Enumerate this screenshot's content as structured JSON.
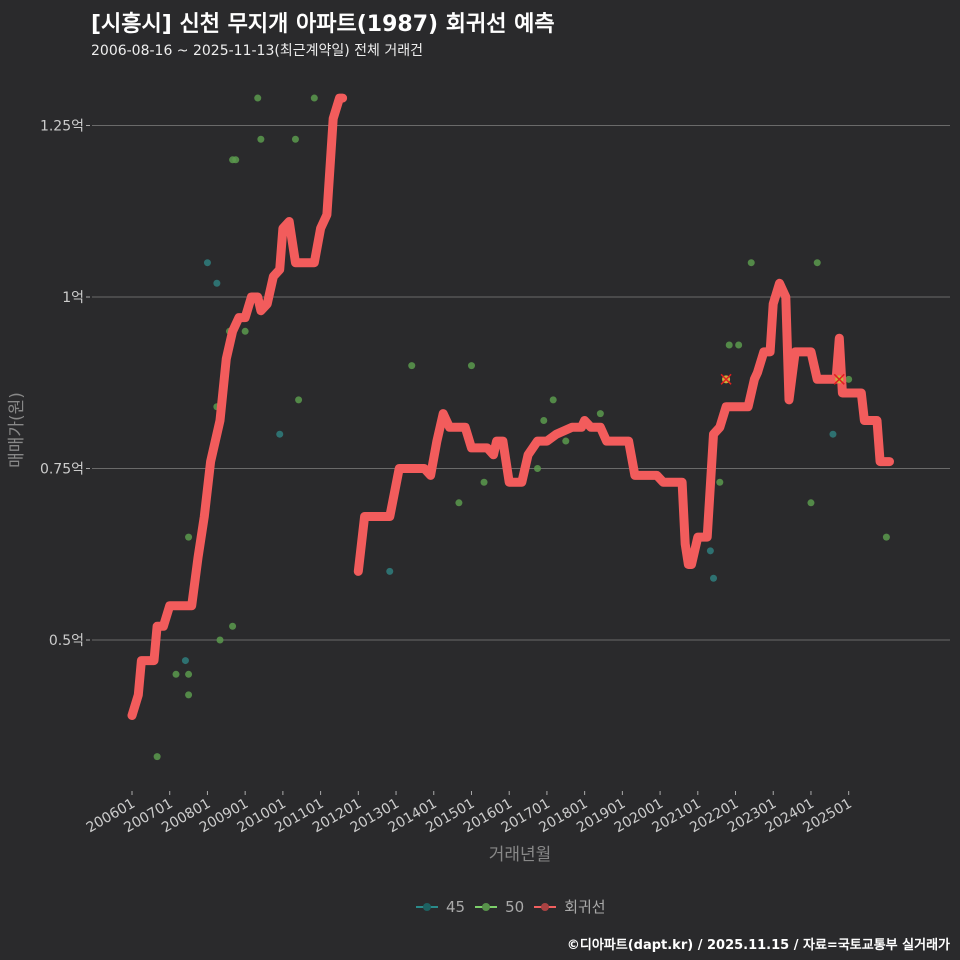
{
  "header": {
    "title": "[시흥시] 신천 무지개 아파트(1987) 회귀선 예측",
    "subtitle": "2006-08-16 ~ 2025-11-13(최근계약일) 전체 거래건"
  },
  "legend": {
    "items": [
      {
        "label": "45",
        "color": "#2a8a8a"
      },
      {
        "label": "50",
        "color": "#7ccf6a"
      },
      {
        "label": "회귀선",
        "color": "#f15f5f"
      }
    ]
  },
  "caption": "©디아파트(dapt.kr) / 2025.11.15 / 자료=국토교통부 실거래가",
  "colors": {
    "background": "#2a2a2c",
    "grid": "#6a6a6a",
    "regression": "#f25c5c",
    "series45": "#2f7e7e",
    "series50": "#5a9a4e"
  },
  "chart_data": {
    "type": "line",
    "title": "[시흥시] 신천 무지개 아파트(1987) 회귀선 예측",
    "subtitle": "2006-08-16 ~ 2025-11-13(최근계약일) 전체 거래건",
    "xlabel": "거래년월",
    "ylabel": "매매가(원)",
    "x_ticks": [
      "200601",
      "200701",
      "200801",
      "200901",
      "201001",
      "201101",
      "201201",
      "201301",
      "201401",
      "201501",
      "201601",
      "201701",
      "201801",
      "201901",
      "202001",
      "202101",
      "202201",
      "202301",
      "202401",
      "202501"
    ],
    "y_ticks": [
      {
        "value": 0.5,
        "label": "0.5억"
      },
      {
        "value": 0.75,
        "label": "0.75억"
      },
      {
        "value": 1.0,
        "label": "1억"
      },
      {
        "value": 1.25,
        "label": "1.25억"
      }
    ],
    "ylim": [
      0.28,
      1.34
    ],
    "grid": true,
    "legend_position": "bottom",
    "series": [
      {
        "name": "회귀선",
        "type": "line",
        "segments": [
          [
            [
              "2006-01",
              0.39
            ],
            [
              "2006-03",
              0.42
            ],
            [
              "2006-04",
              0.47
            ],
            [
              "2006-08",
              0.47
            ],
            [
              "2006-09",
              0.52
            ],
            [
              "2006-11",
              0.52
            ],
            [
              "2007-01",
              0.55
            ],
            [
              "2007-08",
              0.55
            ],
            [
              "2007-10",
              0.62
            ],
            [
              "2007-12",
              0.68
            ],
            [
              "2008-02",
              0.76
            ],
            [
              "2008-05",
              0.82
            ],
            [
              "2008-07",
              0.91
            ],
            [
              "2008-09",
              0.95
            ],
            [
              "2008-11",
              0.97
            ],
            [
              "2009-01",
              0.97
            ],
            [
              "2009-03",
              1.0
            ],
            [
              "2009-05",
              1.0
            ],
            [
              "2009-06",
              0.98
            ],
            [
              "2009-08",
              0.99
            ],
            [
              "2009-10",
              1.03
            ],
            [
              "2009-12",
              1.04
            ],
            [
              "2010-01",
              1.1
            ],
            [
              "2010-03",
              1.11
            ],
            [
              "2010-05",
              1.05
            ],
            [
              "2010-11",
              1.05
            ],
            [
              "2011-01",
              1.1
            ],
            [
              "2011-03",
              1.12
            ],
            [
              "2011-05",
              1.26
            ],
            [
              "2011-07",
              1.29
            ],
            [
              "2011-08",
              1.29
            ]
          ],
          [
            [
              "2012-01",
              0.6
            ],
            [
              "2012-03",
              0.68
            ],
            [
              "2012-11",
              0.68
            ],
            [
              "2013-02",
              0.75
            ],
            [
              "2013-10",
              0.75
            ],
            [
              "2013-12",
              0.74
            ],
            [
              "2014-02",
              0.79
            ],
            [
              "2014-04",
              0.83
            ],
            [
              "2014-06",
              0.81
            ],
            [
              "2014-11",
              0.81
            ],
            [
              "2015-01",
              0.78
            ],
            [
              "2015-06",
              0.78
            ],
            [
              "2015-08",
              0.77
            ],
            [
              "2015-09",
              0.79
            ],
            [
              "2015-11",
              0.79
            ],
            [
              "2016-01",
              0.73
            ],
            [
              "2016-05",
              0.73
            ],
            [
              "2016-07",
              0.77
            ],
            [
              "2016-10",
              0.79
            ],
            [
              "2017-01",
              0.79
            ],
            [
              "2017-04",
              0.8
            ],
            [
              "2017-09",
              0.81
            ],
            [
              "2017-12",
              0.81
            ],
            [
              "2018-01",
              0.82
            ],
            [
              "2018-03",
              0.81
            ],
            [
              "2018-06",
              0.81
            ],
            [
              "2018-08",
              0.79
            ],
            [
              "2019-03",
              0.79
            ],
            [
              "2019-05",
              0.74
            ],
            [
              "2019-12",
              0.74
            ],
            [
              "2020-02",
              0.73
            ],
            [
              "2020-08",
              0.73
            ],
            [
              "2020-09",
              0.64
            ],
            [
              "2020-10",
              0.61
            ],
            [
              "2020-11",
              0.61
            ],
            [
              "2021-01",
              0.65
            ],
            [
              "2021-04",
              0.65
            ],
            [
              "2021-06",
              0.8
            ],
            [
              "2021-08",
              0.81
            ],
            [
              "2021-10",
              0.84
            ],
            [
              "2022-05",
              0.84
            ],
            [
              "2022-07",
              0.88
            ],
            [
              "2022-08",
              0.89
            ],
            [
              "2022-10",
              0.92
            ],
            [
              "2022-12",
              0.92
            ],
            [
              "2023-01",
              0.99
            ],
            [
              "2023-03",
              1.02
            ],
            [
              "2023-05",
              1.0
            ],
            [
              "2023-06",
              0.85
            ],
            [
              "2023-08",
              0.92
            ],
            [
              "2024-01",
              0.92
            ],
            [
              "2024-03",
              0.88
            ],
            [
              "2024-05",
              0.88
            ],
            [
              "2024-06",
              0.88
            ],
            [
              "2024-09",
              0.88
            ],
            [
              "2024-10",
              0.94
            ],
            [
              "2024-11",
              0.86
            ],
            [
              "2025-05",
              0.86
            ],
            [
              "2025-06",
              0.82
            ],
            [
              "2025-10",
              0.82
            ],
            [
              "2025-11",
              0.76
            ],
            [
              "2026-02",
              0.76
            ]
          ]
        ]
      },
      {
        "name": "45",
        "type": "scatter",
        "points": [
          [
            "2007-06",
            0.47
          ],
          [
            "2008-01",
            1.05
          ],
          [
            "2008-04",
            1.02
          ],
          [
            "2009-12",
            0.8
          ],
          [
            "2012-11",
            0.6
          ],
          [
            "2021-05",
            0.63
          ],
          [
            "2021-06",
            0.59
          ],
          [
            "2021-10",
            0.88
          ],
          [
            "2024-08",
            0.8
          ]
        ]
      },
      {
        "name": "50",
        "type": "scatter",
        "points": [
          [
            "2006-09",
            0.33
          ],
          [
            "2007-03",
            0.45
          ],
          [
            "2007-07",
            0.45
          ],
          [
            "2007-07",
            0.42
          ],
          [
            "2007-07",
            0.65
          ],
          [
            "2008-04",
            0.84
          ],
          [
            "2008-05",
            0.5
          ],
          [
            "2008-09",
            0.52
          ],
          [
            "2008-08",
            0.95
          ],
          [
            "2009-01",
            0.95
          ],
          [
            "2008-09",
            1.2
          ],
          [
            "2008-10",
            1.2
          ],
          [
            "2009-05",
            1.29
          ],
          [
            "2009-06",
            1.23
          ],
          [
            "2010-06",
            0.85
          ],
          [
            "2010-05",
            1.23
          ],
          [
            "2010-11",
            1.29
          ],
          [
            "2013-06",
            0.9
          ],
          [
            "2014-09",
            0.7
          ],
          [
            "2015-01",
            0.9
          ],
          [
            "2015-05",
            0.73
          ],
          [
            "2016-10",
            0.75
          ],
          [
            "2016-12",
            0.82
          ],
          [
            "2017-03",
            0.85
          ],
          [
            "2017-07",
            0.79
          ],
          [
            "2018-06",
            0.83
          ],
          [
            "2021-08",
            0.73
          ],
          [
            "2021-11",
            0.93
          ],
          [
            "2022-02",
            0.93
          ],
          [
            "2022-06",
            1.05
          ],
          [
            "2024-01",
            0.7
          ],
          [
            "2024-03",
            1.05
          ],
          [
            "2025-01",
            0.88
          ],
          [
            "2026-01",
            0.65
          ]
        ]
      }
    ],
    "highlighted_points": [
      {
        "x": "2021-10",
        "y": 0.88,
        "marker": "x"
      },
      {
        "x": "2024-10",
        "y": 0.88,
        "marker": "x"
      }
    ]
  }
}
